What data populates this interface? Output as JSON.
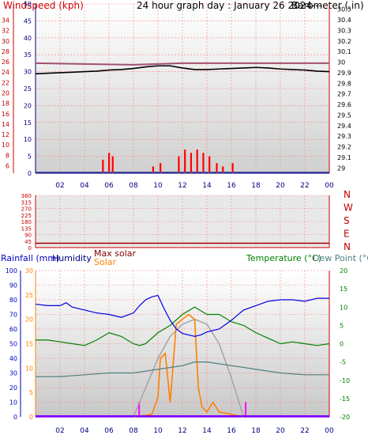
{
  "chart_data": [
    {
      "type": "line",
      "title": "24 hour graph day : January 26 2024---",
      "left_axis": {
        "label": "Windspeed (kph)",
        "ticks_outer": [
          6,
          8,
          10,
          12,
          14,
          16,
          18,
          20,
          22,
          24,
          26,
          28,
          30,
          32,
          34
        ],
        "ticks_inner": [
          0,
          5,
          10,
          15,
          20,
          25,
          30,
          35,
          40,
          45,
          50
        ],
        "range": [
          0,
          50
        ]
      },
      "right_axis": {
        "label": "Barometer (.in)",
        "ticks": [
          "29",
          "29.1",
          "29.2",
          "29.3",
          "29.4",
          "29.5",
          "29.6",
          "29.7",
          "29.8",
          "29.9",
          "30",
          "30.1",
          "30.2",
          "30.3",
          "30.4",
          "30.5"
        ],
        "range": [
          28.95,
          30.55
        ]
      },
      "x_ticks": [
        "02",
        "04",
        "06",
        "08",
        "10",
        "12",
        "14",
        "16",
        "18",
        "20",
        "22",
        "00"
      ],
      "series": [
        {
          "name": "Barometer",
          "axis": "right",
          "color": "#000000",
          "x": [
            0,
            1,
            2,
            3,
            4,
            5,
            6,
            7,
            8,
            9,
            10,
            11,
            12,
            13,
            14,
            15,
            16,
            17,
            18,
            19,
            20,
            21,
            22,
            23,
            24
          ],
          "y": [
            29.89,
            29.895,
            29.9,
            29.905,
            29.91,
            29.915,
            29.925,
            29.93,
            29.94,
            29.955,
            29.965,
            29.965,
            29.945,
            29.93,
            29.93,
            29.935,
            29.94,
            29.945,
            29.95,
            29.945,
            29.935,
            29.93,
            29.925,
            29.915,
            29.91
          ]
        },
        {
          "name": "Windspeed gust",
          "axis": "left",
          "color": "#ff0000",
          "x": [
            5.5,
            6.0,
            6.3,
            9.6,
            10.2,
            11.7,
            12.2,
            12.7,
            13.2,
            13.7,
            14.2,
            14.8,
            15.3,
            16.1
          ],
          "y": [
            4,
            6,
            5,
            2,
            3,
            5,
            7,
            6,
            7,
            6,
            5,
            3,
            2,
            3
          ]
        },
        {
          "name": "Wind direction band",
          "axis": "left",
          "color": "#5050a0",
          "x": [
            0,
            24
          ],
          "y": [
            0.3,
            0.3
          ]
        }
      ]
    },
    {
      "type": "line",
      "title": "",
      "right_labels": [
        "N",
        "W",
        "S",
        "E",
        "N"
      ],
      "left_axis": {
        "ticks": [
          "0",
          "45",
          "90",
          "135",
          "180",
          "225",
          "270",
          "315",
          "360"
        ],
        "range": [
          0,
          360
        ]
      },
      "series": [
        {
          "name": "Wind direction",
          "color": "#a00000",
          "x": [
            0,
            24
          ],
          "y": [
            30,
            30
          ]
        }
      ]
    },
    {
      "type": "line",
      "title": "",
      "legend": [
        "Rainfall (mm)",
        "Humidity",
        "Max solar",
        "Solar",
        "Temperature (°C)",
        "Dew Point (°C)"
      ],
      "left_axis_outer": {
        "label": "Rainfall (mm)",
        "ticks": [
          0,
          10,
          20,
          30,
          40,
          50,
          60,
          70,
          80,
          90,
          100
        ]
      },
      "left_axis_inner": {
        "ticks": [
          0,
          5,
          10,
          15,
          20,
          25,
          30
        ],
        "range": [
          0,
          30
        ]
      },
      "right_axis": {
        "ticks": [
          20,
          15,
          10,
          5,
          0,
          -5,
          -10,
          -15,
          -20
        ],
        "range": [
          -20,
          20
        ]
      },
      "x_ticks": [
        "02",
        "04",
        "06",
        "08",
        "10",
        "12",
        "14",
        "16",
        "18",
        "20",
        "22",
        "00"
      ],
      "series": [
        {
          "name": "Humidity",
          "color": "#0000e0",
          "x": [
            0,
            1,
            2,
            2.5,
            3,
            4,
            5,
            6,
            7,
            8,
            8.5,
            9,
            9.5,
            10,
            10.5,
            11,
            11.5,
            12,
            12.5,
            13,
            13.5,
            14,
            15,
            16,
            17,
            18,
            19,
            20,
            21,
            22,
            23,
            24
          ],
          "y": [
            77,
            76,
            76,
            78,
            75,
            73,
            71,
            70,
            68,
            71,
            76,
            80,
            82,
            83,
            74,
            66,
            60,
            57,
            56,
            55,
            56,
            58,
            60,
            66,
            73,
            76,
            79,
            80,
            80,
            79,
            81,
            81
          ]
        },
        {
          "name": "Temperature",
          "color": "#008000",
          "x": [
            0,
            1,
            2,
            3,
            4,
            5,
            6,
            7,
            8,
            8.5,
            9,
            10,
            11,
            12,
            13,
            13.5,
            14,
            15,
            16,
            17,
            18,
            19,
            20,
            21,
            22,
            23,
            24
          ],
          "y": [
            1,
            1,
            0.5,
            0,
            -0.5,
            1,
            3,
            2,
            0,
            -0.5,
            0,
            3,
            5,
            8,
            10,
            9,
            8,
            8,
            6,
            5,
            3,
            1.5,
            0,
            0.5,
            0,
            -0.5,
            0
          ]
        },
        {
          "name": "Dew Point",
          "color": "#508080",
          "x": [
            0,
            2,
            4,
            6,
            8,
            10,
            12,
            13,
            14,
            16,
            18,
            20,
            22,
            24
          ],
          "y": [
            -9,
            -9,
            -8.5,
            -8,
            -8,
            -7,
            -6,
            -5,
            -5,
            -6,
            -7,
            -8,
            -8.5,
            -8.5
          ]
        },
        {
          "name": "Max solar",
          "color": "#a0a0a0",
          "x": [
            8,
            9,
            10,
            11,
            12,
            13,
            14,
            15,
            16,
            17
          ],
          "y": [
            0,
            6,
            12,
            16.5,
            19,
            20,
            19,
            15,
            8,
            0
          ]
        },
        {
          "name": "Solar",
          "color": "#ff8000",
          "x": [
            8,
            9.5,
            10,
            10.2,
            10.6,
            11,
            11.5,
            12,
            12.5,
            13,
            13.3,
            13.6,
            14,
            14.5,
            15,
            16,
            17
          ],
          "y": [
            0,
            0.5,
            4,
            12,
            13,
            3,
            19,
            20,
            21,
            20,
            6,
            2,
            1,
            3,
            1,
            0.5,
            0
          ]
        },
        {
          "name": "Rainfall",
          "color": "#8000ff",
          "x": [
            0,
            24
          ],
          "y": [
            0,
            0
          ]
        }
      ]
    }
  ],
  "colors": {
    "background": "#ffffff",
    "grid": "#ff6060",
    "axis": "#d00000",
    "dark_axis": "#000080",
    "barometer_band": "#a05070",
    "direction": "#c00000"
  }
}
